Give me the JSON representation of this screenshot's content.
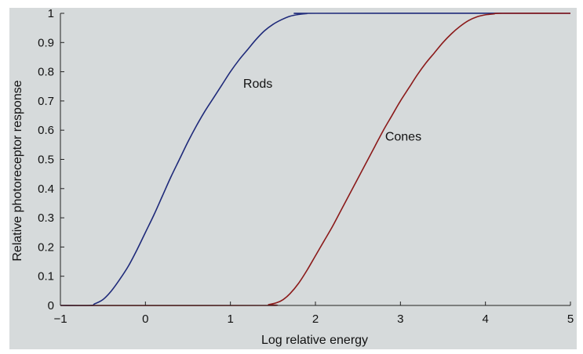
{
  "chart_data": {
    "type": "line",
    "title": "",
    "xlabel": "Log relative energy",
    "ylabel": "Relative photoreceptor response",
    "xlim": [
      -1,
      5
    ],
    "ylim": [
      0,
      1
    ],
    "xticks": [
      "−1",
      "0",
      "1",
      "2",
      "3",
      "4",
      "5"
    ],
    "yticks": [
      "0",
      "0.1",
      "0.2",
      "0.3",
      "0.4",
      "0.5",
      "0.6",
      "0.7",
      "0.8",
      "0.9",
      "1"
    ],
    "grid": false,
    "legend": "none",
    "background_color": "#d6dadb",
    "series": [
      {
        "color": "#1f2a7a",
        "points": [
          [
            -1,
            0
          ],
          [
            -0.65,
            0
          ],
          [
            -0.6,
            0.005
          ],
          [
            -0.5,
            0.02
          ],
          [
            -0.4,
            0.05
          ],
          [
            -0.3,
            0.09
          ],
          [
            -0.2,
            0.135
          ],
          [
            -0.1,
            0.19
          ],
          [
            0,
            0.25
          ],
          [
            0.1,
            0.31
          ],
          [
            0.2,
            0.375
          ],
          [
            0.3,
            0.44
          ],
          [
            0.4,
            0.5
          ],
          [
            0.5,
            0.56
          ],
          [
            0.6,
            0.615
          ],
          [
            0.7,
            0.665
          ],
          [
            0.8,
            0.71
          ],
          [
            0.9,
            0.755
          ],
          [
            1.0,
            0.8
          ],
          [
            1.1,
            0.84
          ],
          [
            1.2,
            0.875
          ],
          [
            1.3,
            0.91
          ],
          [
            1.4,
            0.94
          ],
          [
            1.5,
            0.962
          ],
          [
            1.6,
            0.978
          ],
          [
            1.7,
            0.99
          ],
          [
            1.8,
            0.996
          ],
          [
            1.9,
            0.999
          ],
          [
            2.0,
            1.0
          ],
          [
            5,
            1.0
          ]
        ]
      },
      {
        "color": "#8b1a1a",
        "points": [
          [
            -1,
            0
          ],
          [
            1.35,
            0
          ],
          [
            1.45,
            0.003
          ],
          [
            1.55,
            0.01
          ],
          [
            1.62,
            0.02
          ],
          [
            1.7,
            0.04
          ],
          [
            1.8,
            0.075
          ],
          [
            1.9,
            0.12
          ],
          [
            2.0,
            0.17
          ],
          [
            2.1,
            0.22
          ],
          [
            2.2,
            0.27
          ],
          [
            2.3,
            0.325
          ],
          [
            2.4,
            0.38
          ],
          [
            2.5,
            0.435
          ],
          [
            2.6,
            0.49
          ],
          [
            2.7,
            0.545
          ],
          [
            2.8,
            0.6
          ],
          [
            2.9,
            0.65
          ],
          [
            3.0,
            0.7
          ],
          [
            3.1,
            0.745
          ],
          [
            3.2,
            0.79
          ],
          [
            3.3,
            0.83
          ],
          [
            3.4,
            0.865
          ],
          [
            3.5,
            0.9
          ],
          [
            3.6,
            0.93
          ],
          [
            3.7,
            0.955
          ],
          [
            3.8,
            0.975
          ],
          [
            3.9,
            0.988
          ],
          [
            4.0,
            0.995
          ],
          [
            4.1,
            0.998
          ],
          [
            4.2,
            1.0
          ],
          [
            5,
            1.0
          ]
        ]
      }
    ],
    "annotations": [
      {
        "text": "Rods",
        "x": 1.15,
        "y": 0.745
      },
      {
        "text": "Cones",
        "x": 2.82,
        "y": 0.565
      }
    ]
  }
}
